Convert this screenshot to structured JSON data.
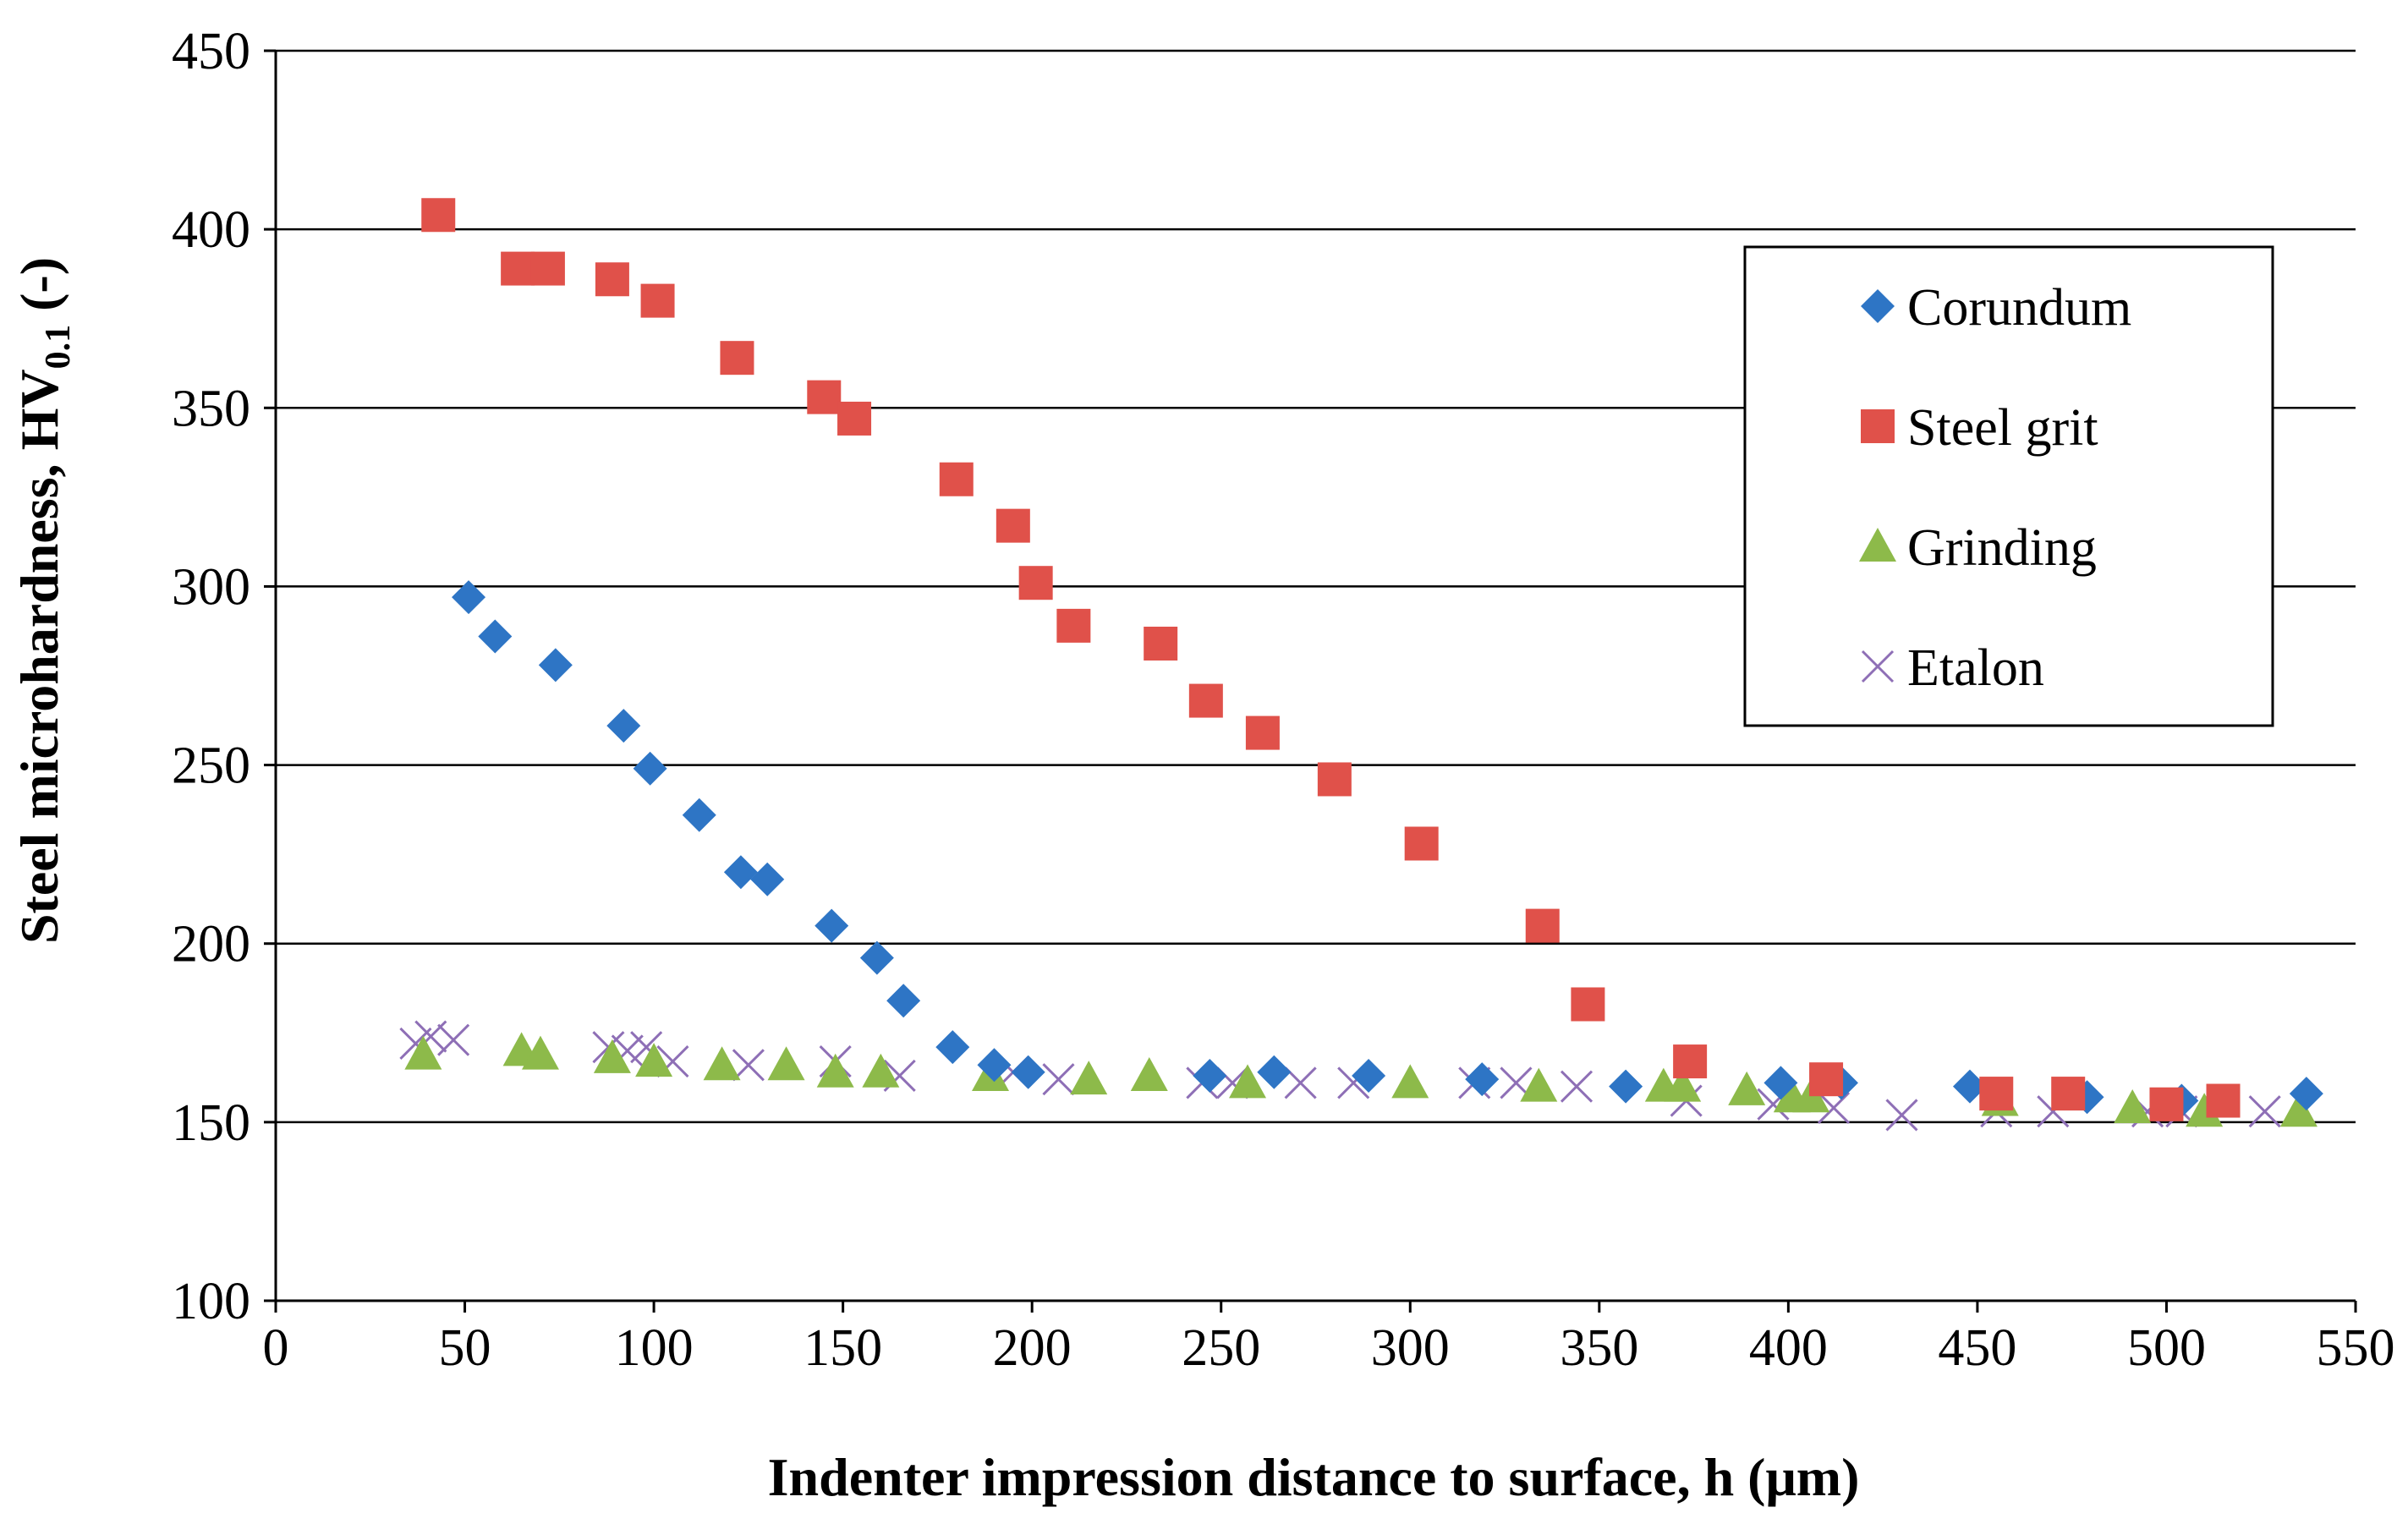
{
  "chart_data": {
    "type": "scatter",
    "title": "",
    "xlabel": "Indenter impression distance to surface, h (μm)",
    "ylabel": "Steel microhardness, HV",
    "ylabel_subscript": "0.1",
    "ylabel_suffix": " (-)",
    "xlim": [
      0,
      550
    ],
    "ylim": [
      100,
      450
    ],
    "x_ticks": [
      0,
      50,
      100,
      150,
      200,
      250,
      300,
      350,
      400,
      450,
      500,
      550
    ],
    "y_ticks": [
      100,
      150,
      200,
      250,
      300,
      350,
      400,
      450
    ],
    "grid": "horizontal",
    "legend_position": "right",
    "series": [
      {
        "name": "Corundum",
        "marker": "diamond",
        "color": "#2E75C5",
        "points": [
          [
            51,
            297
          ],
          [
            58,
            286
          ],
          [
            74,
            278
          ],
          [
            92,
            261
          ],
          [
            99,
            249
          ],
          [
            112,
            236
          ],
          [
            123,
            220
          ],
          [
            130,
            218
          ],
          [
            147,
            205
          ],
          [
            159,
            196
          ],
          [
            166,
            184
          ],
          [
            179,
            171
          ],
          [
            190,
            166
          ],
          [
            199,
            164
          ],
          [
            247,
            163
          ],
          [
            264,
            164
          ],
          [
            289,
            163
          ],
          [
            319,
            162
          ],
          [
            357,
            160
          ],
          [
            398,
            161
          ],
          [
            414,
            161
          ],
          [
            448,
            160
          ],
          [
            479,
            157
          ],
          [
            504,
            156
          ],
          [
            537,
            158
          ]
        ]
      },
      {
        "name": "Steel grit",
        "marker": "square",
        "color": "#E0514A",
        "points": [
          [
            43,
            404
          ],
          [
            64,
            389
          ],
          [
            72,
            389
          ],
          [
            89,
            386
          ],
          [
            101,
            380
          ],
          [
            122,
            364
          ],
          [
            145,
            353
          ],
          [
            153,
            347
          ],
          [
            180,
            330
          ],
          [
            195,
            317
          ],
          [
            201,
            301
          ],
          [
            211,
            289
          ],
          [
            234,
            284
          ],
          [
            246,
            268
          ],
          [
            261,
            259
          ],
          [
            280,
            246
          ],
          [
            303,
            228
          ],
          [
            335,
            205
          ],
          [
            347,
            183
          ],
          [
            374,
            167
          ],
          [
            410,
            162
          ],
          [
            455,
            158
          ],
          [
            474,
            158
          ],
          [
            500,
            155
          ],
          [
            515,
            156
          ]
        ]
      },
      {
        "name": "Grinding",
        "marker": "triangle",
        "color": "#8DBA4A",
        "points": [
          [
            39,
            169
          ],
          [
            65,
            170
          ],
          [
            70,
            169
          ],
          [
            89,
            168
          ],
          [
            100,
            167
          ],
          [
            118,
            166
          ],
          [
            135,
            166
          ],
          [
            148,
            164
          ],
          [
            160,
            164
          ],
          [
            189,
            163
          ],
          [
            215,
            162
          ],
          [
            231,
            163
          ],
          [
            257,
            161
          ],
          [
            300,
            161
          ],
          [
            334,
            160
          ],
          [
            367,
            160
          ],
          [
            372,
            160
          ],
          [
            389,
            159
          ],
          [
            401,
            157
          ],
          [
            406,
            157
          ],
          [
            456,
            156
          ],
          [
            491,
            154
          ],
          [
            510,
            153
          ],
          [
            535,
            153
          ]
        ]
      },
      {
        "name": "Etalon",
        "marker": "x",
        "color": "#8E6FB6",
        "points": [
          [
            37,
            172
          ],
          [
            41,
            174
          ],
          [
            47,
            173
          ],
          [
            88,
            171
          ],
          [
            93,
            170
          ],
          [
            98,
            171
          ],
          [
            105,
            167
          ],
          [
            125,
            166
          ],
          [
            148,
            167
          ],
          [
            165,
            163
          ],
          [
            195,
            164
          ],
          [
            207,
            162
          ],
          [
            245,
            161
          ],
          [
            253,
            161
          ],
          [
            271,
            161
          ],
          [
            285,
            161
          ],
          [
            317,
            161
          ],
          [
            328,
            161
          ],
          [
            344,
            160
          ],
          [
            373,
            156
          ],
          [
            396,
            155
          ],
          [
            412,
            154
          ],
          [
            430,
            152
          ],
          [
            455,
            153
          ],
          [
            470,
            153
          ],
          [
            495,
            153
          ],
          [
            504,
            153
          ],
          [
            526,
            153
          ]
        ]
      }
    ]
  }
}
